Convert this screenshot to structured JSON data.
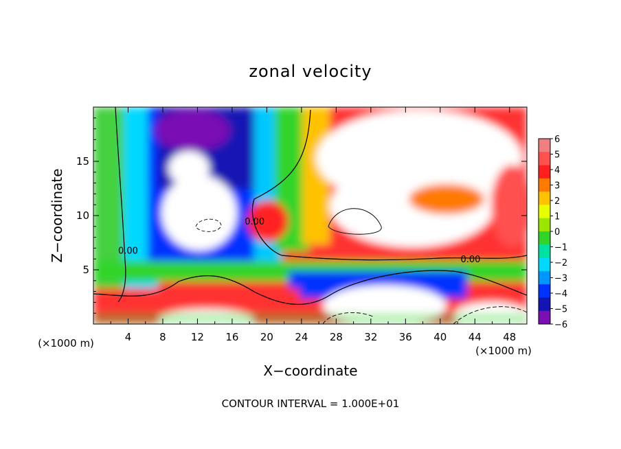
{
  "chart_data": {
    "type": "heatmap",
    "title": "zonal velocity",
    "xlabel": "X−coordinate",
    "ylabel": "Z−coordinate",
    "x_unit_left": "(×1000 m)",
    "x_unit_right": "(×1000 m)",
    "footer": "CONTOUR INTERVAL = 1.000E+01",
    "xlim": [
      0,
      50
    ],
    "ylim": [
      0,
      20
    ],
    "x_ticks": [
      "4",
      "8",
      "12",
      "16",
      "20",
      "24",
      "28",
      "32",
      "36",
      "40",
      "44",
      "48"
    ],
    "x_tick_values": [
      4,
      8,
      12,
      16,
      20,
      24,
      28,
      32,
      36,
      40,
      44,
      48
    ],
    "y_ticks": [
      "5",
      "10",
      "15"
    ],
    "y_tick_values": [
      5,
      10,
      15
    ],
    "contour_labels": [
      {
        "text": "0.00",
        "x": 43.5,
        "y": 6.0
      },
      {
        "text": "0.00",
        "x": 4.0,
        "y": 6.8
      },
      {
        "text": "0.00",
        "x": 18.6,
        "y": 9.5
      }
    ],
    "colorbar": {
      "labels": [
        "6",
        "5",
        "4",
        "3",
        "2",
        "1",
        "0",
        "−1",
        "−2",
        "−3",
        "−4",
        "−5",
        "−6"
      ],
      "levels": [
        6,
        5,
        4,
        3,
        2,
        1,
        0,
        -1,
        -2,
        -3,
        -4,
        -5,
        -6
      ],
      "colors": [
        "#f08080",
        "#ff5050",
        "#ff1f1f",
        "#ff7a00",
        "#ffc200",
        "#e8ff00",
        "#9ae600",
        "#33d42a",
        "#00e0a0",
        "#00d8ff",
        "#0096ff",
        "#0032ff",
        "#1414b4",
        "#7a10b4"
      ]
    }
  }
}
